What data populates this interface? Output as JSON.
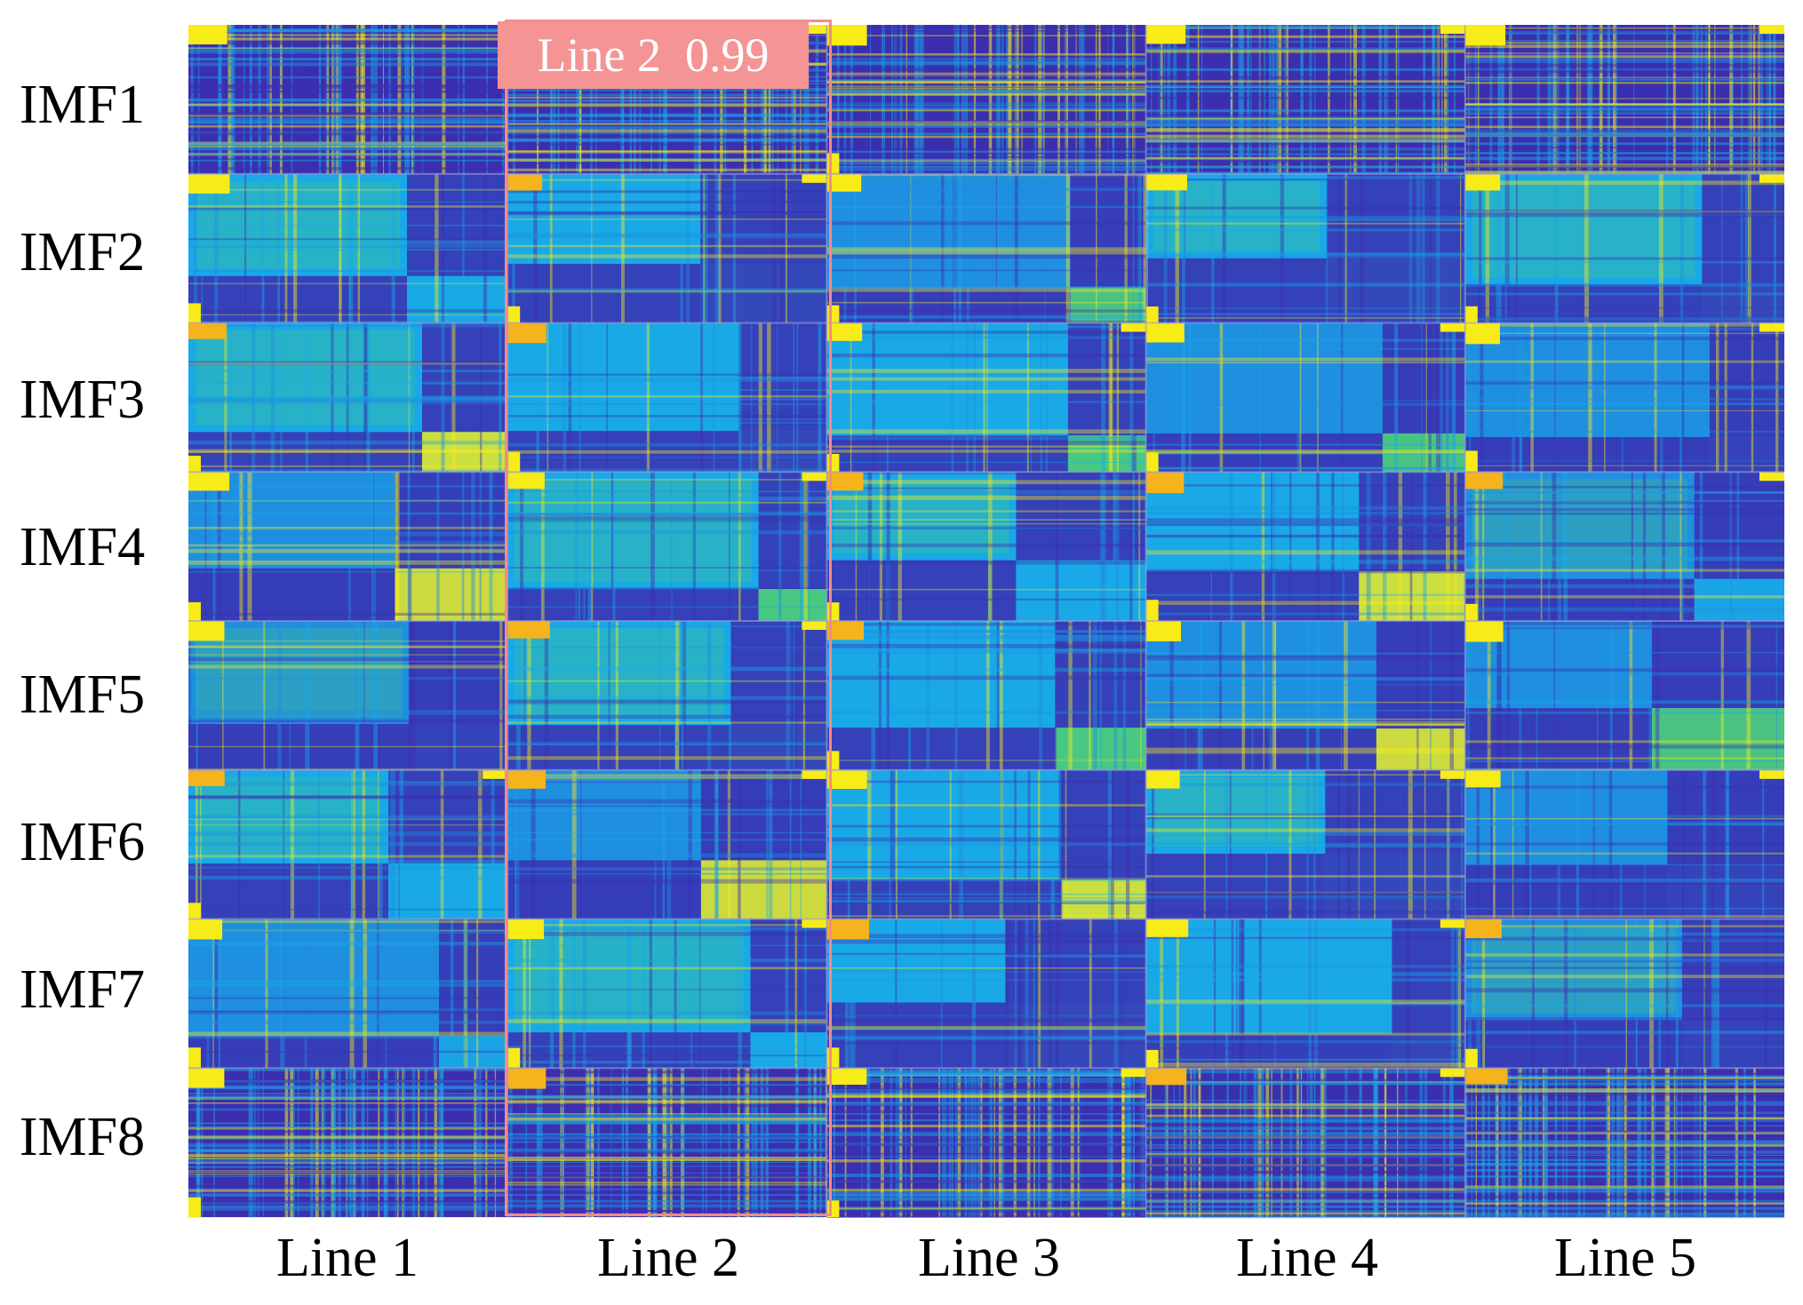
{
  "chart_data": {
    "type": "heatmap",
    "title": "",
    "row_labels": [
      "IMF1",
      "IMF2",
      "IMF3",
      "IMF4",
      "IMF5",
      "IMF6",
      "IMF7",
      "IMF8"
    ],
    "column_labels": [
      "Line 1",
      "Line 2",
      "Line 3",
      "Line 4",
      "Line 5"
    ],
    "highlight": {
      "column": "Line 2",
      "label": "Line 2",
      "value": "0.99",
      "text": "Line 2  0.99"
    },
    "colormap": [
      "#3b2fb0",
      "#3f4ad8",
      "#1f8fe0",
      "#19a9e6",
      "#2bbdb0",
      "#55d06a",
      "#c8e23a",
      "#f8ec18"
    ],
    "colors": {
      "dark_blue": "#3b2fb0",
      "mid_blue": "#1f8fe0",
      "cyan": "#19a9e6",
      "green": "#55d06a",
      "yellow": "#f8ec18",
      "orange": "#f5b31c",
      "highlight_box": "#f28b8b",
      "highlight_badge": "#f49494"
    }
  }
}
